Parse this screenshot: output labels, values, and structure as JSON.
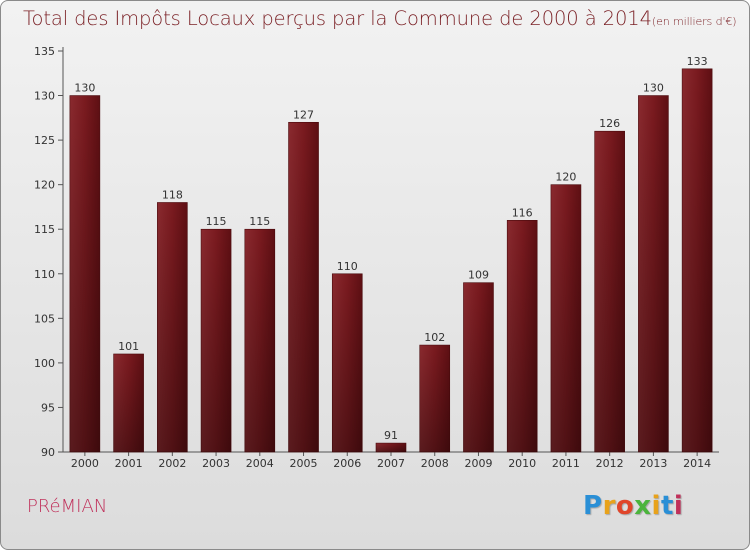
{
  "title_main": "Total des Impôts Locaux perçus par la Commune de 2000 à 2014",
  "title_unit": "(en milliers d'€)",
  "commune": "PRéMIAN",
  "logo": {
    "letters": [
      "P",
      "r",
      "o",
      "x",
      "i",
      "t",
      "i"
    ],
    "colors": [
      "#2a8fd6",
      "#e8a21b",
      "#e0452a",
      "#4bb43c",
      "#e8a21b",
      "#2a8fd6",
      "#c0305a"
    ]
  },
  "colors": {
    "bar": "#7a1a1f",
    "bar_dark": "#5a0c10",
    "title": "#7a1f24",
    "commune": "#c0305a"
  },
  "chart_data": {
    "type": "bar",
    "title": "Total des Impôts Locaux perçus par la Commune de 2000 à 2014",
    "ylabel": "",
    "xlabel": "",
    "categories": [
      "2000",
      "2001",
      "2002",
      "2003",
      "2004",
      "2005",
      "2006",
      "2007",
      "2008",
      "2009",
      "2010",
      "2011",
      "2012",
      "2013",
      "2014"
    ],
    "values": [
      130,
      101,
      118,
      115,
      115,
      127,
      110,
      91,
      102,
      109,
      116,
      120,
      126,
      130,
      133
    ],
    "ylim": [
      90,
      135
    ],
    "yticks": [
      90,
      95,
      100,
      105,
      110,
      115,
      120,
      125,
      130,
      135
    ],
    "grid": false
  }
}
